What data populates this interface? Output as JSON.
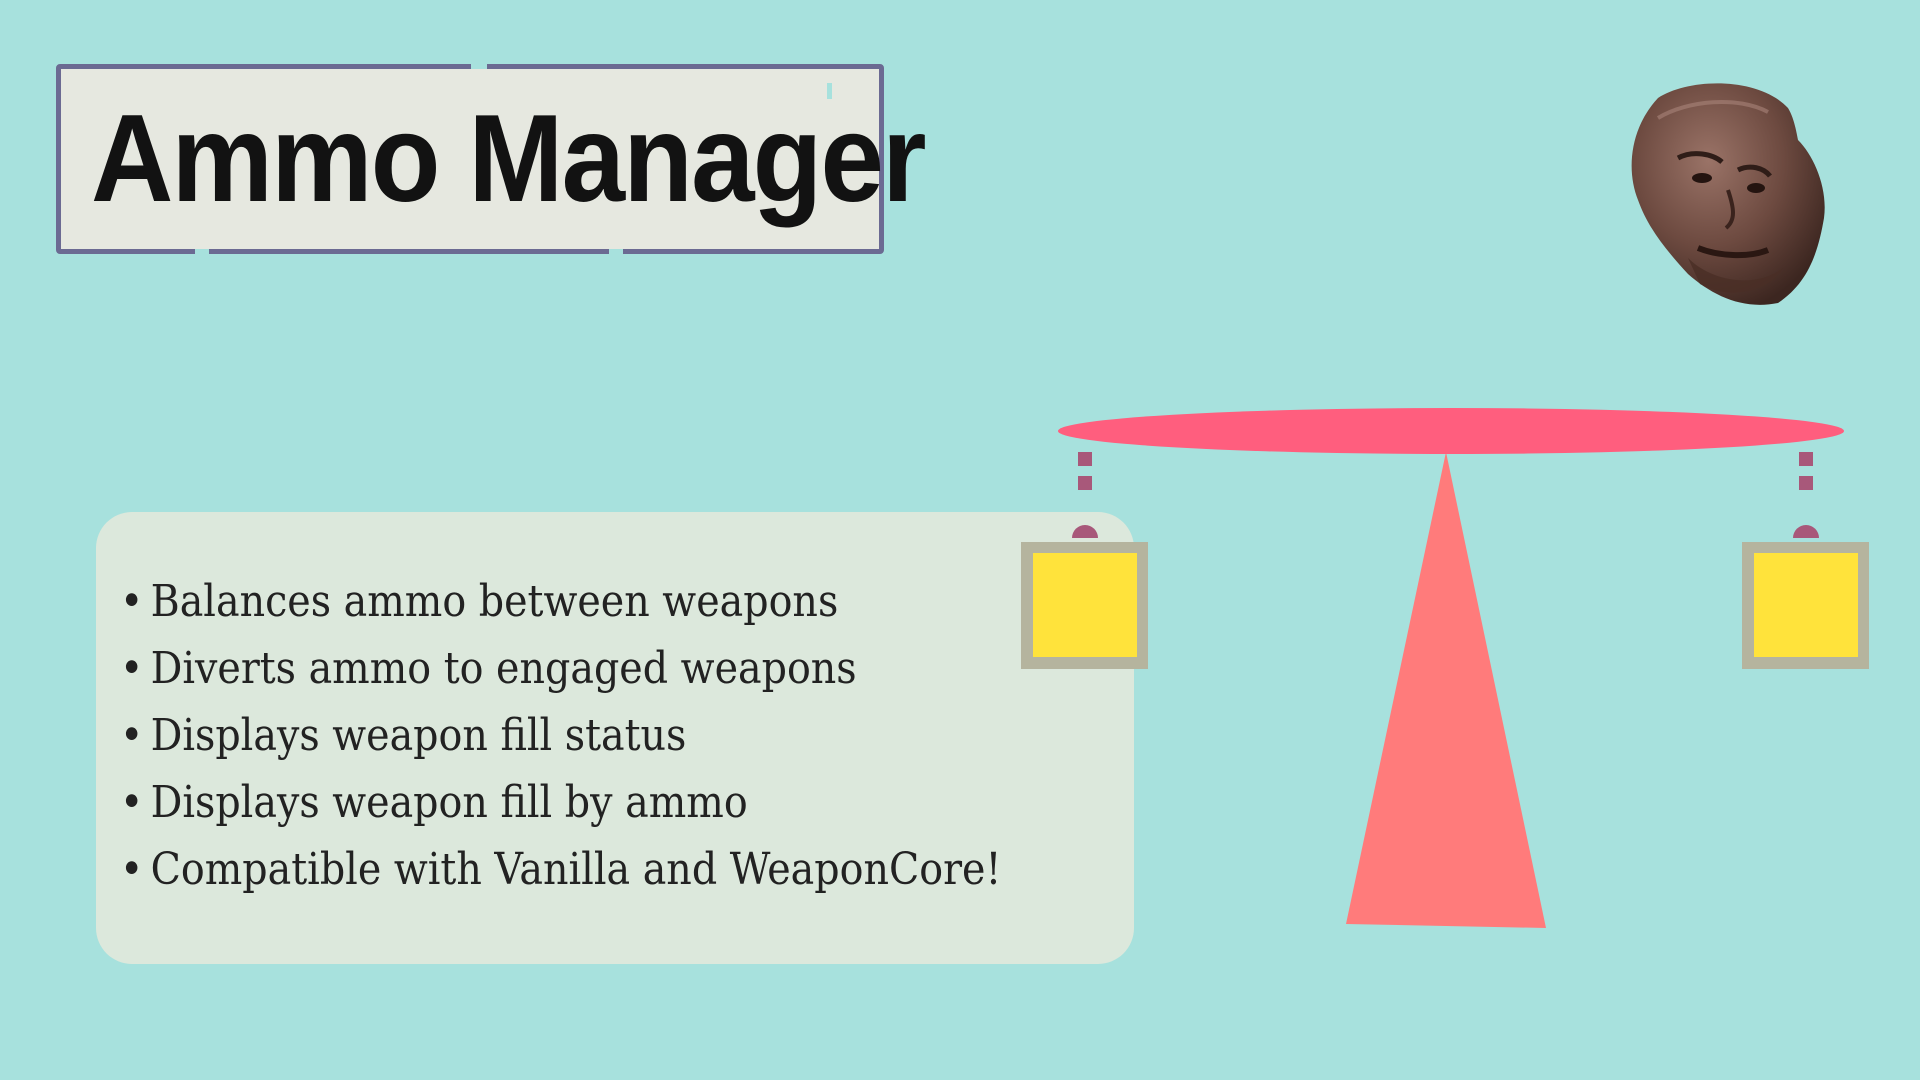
{
  "title": "Ammo Manager",
  "features": [
    "Balances ammo between weapons",
    "Diverts ammo to engaged weapons",
    "Displays weapon fill status",
    "Displays weapon fill by ammo",
    "Compatible with Vanilla and WeaponCore!"
  ],
  "bullet_glyph": "•",
  "colors": {
    "background": "#a7e1dd",
    "title_box": "#e6e8e0",
    "title_border": "#6b6a92",
    "feature_box": "#dce8dc",
    "scale_beam": "#ff5e7e",
    "scale_stand": "#ff7b7b",
    "weight_fill": "#ffe33b",
    "weight_frame": "#b5b49e",
    "chain": "#a8587a"
  },
  "icons": {
    "balance_scale": "balance-scale-illustration",
    "face": "bald-head-face-illustration"
  }
}
